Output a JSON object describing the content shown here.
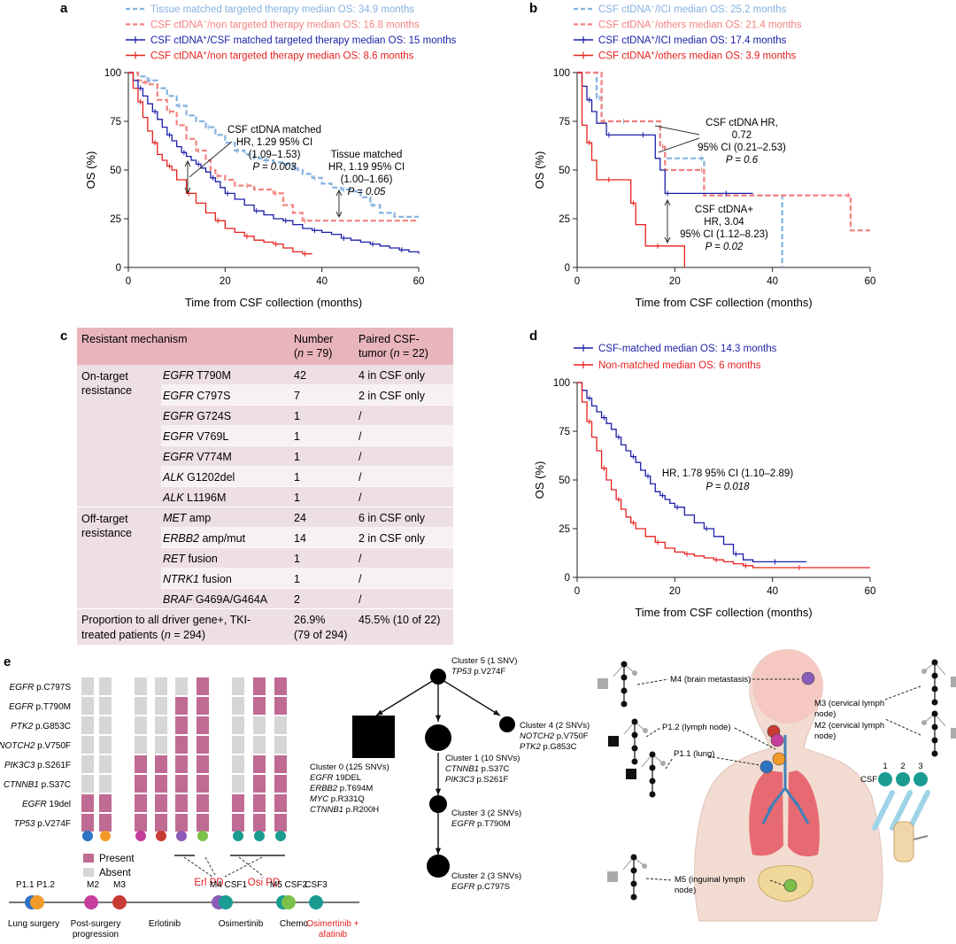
{
  "panels": {
    "a": {
      "letter": "a",
      "legend": [
        {
          "text": "Tissue matched targeted therapy median OS: 34.9 months",
          "color": "#84b1e0",
          "dash": true
        },
        {
          "text_pre": "CSF ctDNA",
          "sup": "−",
          "text_post": "/non targeted therapy median OS: 16.8 months",
          "color": "#f2827e",
          "dash": true
        },
        {
          "text_pre": "CSF ctDNA",
          "sup": "+",
          "text_post": "/CSF matched targeted therapy median OS: 15 months",
          "color": "#1b1fa8",
          "dash": false
        },
        {
          "text_pre": "CSF ctDNA",
          "sup": "+",
          "text_post": "/non targeted therapy median OS: 8.6 months",
          "color": "#e5211f",
          "dash": false
        }
      ],
      "annot1": [
        "CSF ctDNA matched",
        "HR, 1.29 95% CI",
        "(1.09–1.53)",
        "P = 0.003"
      ],
      "annot2": [
        "Tissue matched",
        "HR, 1.19 95% CI",
        "(1.00–1.66)",
        "P = 0.05"
      ]
    },
    "b": {
      "letter": "b",
      "legend": [
        {
          "text_pre": "CSF ctDNA",
          "sup": "−",
          "text_post": "/ICI median OS: 25.2 months",
          "color": "#84b1e0",
          "dash": true
        },
        {
          "text_pre": "CSF ctDNA",
          "sup": "−",
          "text_post": "/others median OS: 21.4 months",
          "color": "#f2827e",
          "dash": true
        },
        {
          "text_pre": "CSF ctDNA",
          "sup": "+",
          "text_post": "/ICI median OS: 17.4 months",
          "color": "#1b1fa8",
          "dash": false
        },
        {
          "text_pre": "CSF ctDNA",
          "sup": "+",
          "text_post": "/others median OS: 3.9 months",
          "color": "#e5211f",
          "dash": false
        }
      ],
      "annot1": [
        "CSF ctDNA HR,",
        "0.72",
        "95% CI (0.21–2.53)",
        "P = 0.6"
      ],
      "annot2": [
        "CSF ctDNA+",
        "HR, 3.04",
        "95% CI (1.12–8.23)",
        "P = 0.02"
      ]
    },
    "c": {
      "letter": "c",
      "headers": [
        "Resistant mechanism",
        "Number",
        "(n = 79)",
        "Paired CSF-",
        "tumor (n = 22)"
      ],
      "groups": [
        {
          "label": [
            "On-target",
            "resistance"
          ],
          "rows": [
            {
              "gene": "EGFR",
              "var": "T790M",
              "num": "42",
              "paired": "4 in CSF only"
            },
            {
              "gene": "EGFR",
              "var": "C797S",
              "num": "7",
              "paired": "2 in CSF only"
            },
            {
              "gene": "EGFR",
              "var": "G724S",
              "num": "1",
              "paired": "/"
            },
            {
              "gene": "EGFR",
              "var": "V769L",
              "num": "1",
              "paired": "/"
            },
            {
              "gene": "EGFR",
              "var": "V774M",
              "num": "1",
              "paired": "/"
            },
            {
              "gene": "ALK",
              "var": "G1202del",
              "num": "1",
              "paired": "/"
            },
            {
              "gene": "ALK",
              "var": "L1196M",
              "num": "1",
              "paired": "/"
            }
          ]
        },
        {
          "label": [
            "Off-target",
            "resistance"
          ],
          "rows": [
            {
              "gene": "MET",
              "var": "amp",
              "num": "24",
              "paired": "6 in CSF only"
            },
            {
              "gene": "ERBB2",
              "var": "amp/mut",
              "num": "14",
              "paired": "2 in CSF only"
            },
            {
              "gene": "RET",
              "var": "fusion",
              "num": "1",
              "paired": "/"
            },
            {
              "gene": "NTRK1",
              "var": "fusion",
              "num": "1",
              "paired": "/"
            },
            {
              "gene": "BRAF",
              "var": "G469A/G464A",
              "num": "2",
              "paired": "/"
            }
          ]
        }
      ],
      "footer": {
        "label": [
          "Proportion to all driver gene+, TKI-",
          "treated patients (n = 294)"
        ],
        "num": [
          "26.9%",
          "(79 of 294)"
        ],
        "paired": "45.5% (10 of 22)"
      }
    },
    "d": {
      "letter": "d",
      "legend": [
        {
          "text": "CSF-matched median OS: 14.3 months",
          "color": "#1b1fa8"
        },
        {
          "text": "Non-matched median OS: 6 months",
          "color": "#e5211f"
        }
      ],
      "annot": [
        "HR, 1.78 95% CI (1.10–2.89)",
        "P = 0.018"
      ]
    },
    "e": {
      "letter": "e",
      "genes": [
        {
          "g": "EGFR",
          "v": "p.C797S"
        },
        {
          "g": "EGFR",
          "v": "p.T790M"
        },
        {
          "g": "PTK2",
          "v": "p.G853C"
        },
        {
          "g": "NOTCH2",
          "v": "p.V750F"
        },
        {
          "g": "PIK3C3",
          "v": "p.S261F"
        },
        {
          "g": "CTNNB1",
          "v": "p.S37C"
        },
        {
          "g": "EGFR",
          "v": "19del"
        },
        {
          "g": "TP53",
          "v": "p.V274F"
        }
      ],
      "legend_present": "Present",
      "legend_absent": "Absent",
      "erl_pd": "Erl PD",
      "osi_pd": "Osi PD",
      "timeline_labels_top": [
        "P1.1 P1.2",
        "M2",
        "M3",
        "M4 CSF1",
        "M5 CSF2",
        "CSF3"
      ],
      "timeline_labels_bottom": [
        "Lung surgery",
        "Post-surgery",
        "progression",
        "Erlotinib",
        "Osimertinib",
        "Chemo",
        "Osimertinib +",
        "afatinib"
      ],
      "clusters": {
        "c5": [
          "Cluster 5 (1 SNV)",
          "TP53 p.V274F"
        ],
        "c0": [
          "Cluster 0 (125 SNVs)",
          "EGFR 19DEL",
          "ERBB2 p.T694M",
          "MYC p.R331Q",
          "CTNNB1 p.R200H"
        ],
        "c1": [
          "Cluster 1 (10 SNVs)",
          "CTNNB1 p.S37C",
          "PIK3C3 p.S261F"
        ],
        "c4": [
          "Cluster 4 (2 SNVs)",
          "NOTCH2 p.V750F",
          "PTK2 p.G853C"
        ],
        "c3": [
          "Cluster 3 (2 SNVs)",
          "EGFR p.T790M"
        ],
        "c2": [
          "Cluster 2 (3 SNVs)",
          "EGFR p.C797S"
        ]
      },
      "sites": {
        "m4": "M4 (brain metastasis)",
        "m3": [
          "M3 (cervical lymph",
          "node)"
        ],
        "m2": [
          "M2 (cervical lymph",
          "node)"
        ],
        "p12": "P1.2 (lymph node)",
        "p11": "P1.1 (lung)",
        "m5": [
          "M5 (inguinal lymph",
          "node)"
        ],
        "csf": "CSF",
        "csf_nums": [
          "1",
          "2",
          "3"
        ]
      }
    }
  },
  "axes": {
    "os_label": "OS (%)",
    "time_label": "Time from CSF collection (months)",
    "y_ticks": [
      "0",
      "25",
      "50",
      "75",
      "100"
    ],
    "x_ticks": [
      "0",
      "20",
      "40",
      "60"
    ]
  },
  "colors": {
    "light_blue": "#84b1e0",
    "salmon": "#f2827e",
    "navy": "#1b1fa8",
    "red": "#e5211f",
    "table_head": "#e8b5bd",
    "table_dark": "#eedfe2",
    "table_light": "#f8f1f2",
    "present": "#c06b93",
    "absent": "#d6d6d6"
  },
  "chart_data": [
    {
      "type": "line",
      "title": "",
      "xlabel": "Time from CSF collection (months)",
      "ylabel": "OS (%)",
      "xlim": [
        0,
        60
      ],
      "ylim": [
        0,
        100
      ],
      "series": [
        {
          "name": "Tissue matched targeted therapy median OS: 34.9 months",
          "x": [
            0,
            2,
            4,
            6,
            8,
            10,
            12,
            14,
            16,
            18,
            20,
            22,
            24,
            26,
            28,
            30,
            32,
            34,
            35,
            36,
            38,
            40,
            42,
            44,
            46,
            48,
            50,
            52,
            55,
            60
          ],
          "y": [
            100,
            98,
            96,
            92,
            88,
            83,
            78,
            75,
            72,
            68,
            64,
            60,
            58,
            56,
            55,
            54,
            53,
            51,
            50,
            48,
            46,
            43,
            41,
            40,
            39,
            36,
            32,
            28,
            26,
            26
          ]
        },
        {
          "name": "CSF ctDNA-/non targeted therapy median OS: 16.8 months",
          "x": [
            0,
            2,
            3,
            4,
            6,
            8,
            10,
            12,
            14,
            16,
            17,
            18,
            20,
            22,
            24,
            26,
            28,
            30,
            32,
            34,
            36,
            60
          ],
          "y": [
            100,
            96,
            95,
            94,
            86,
            80,
            73,
            66,
            60,
            55,
            50,
            47,
            45,
            42,
            42,
            40,
            40,
            38,
            32,
            28,
            24,
            24
          ]
        },
        {
          "name": "CSF ctDNA+/CSF matched targeted therapy median OS: 15 months",
          "x": [
            0,
            1,
            2,
            3,
            4,
            5,
            6,
            7,
            8,
            9,
            10,
            11,
            12,
            13,
            14,
            15,
            16,
            17,
            18,
            19,
            20,
            22,
            24,
            26,
            28,
            30,
            32,
            34,
            36,
            38,
            40,
            42,
            44,
            46,
            48,
            50,
            52,
            54,
            56,
            58,
            60
          ],
          "y": [
            100,
            96,
            92,
            88,
            84,
            80,
            76,
            72,
            68,
            65,
            62,
            59,
            57,
            55,
            53,
            51,
            49,
            46,
            44,
            41,
            38,
            35,
            32,
            29,
            27,
            25,
            24,
            22,
            20,
            19,
            18,
            17,
            15,
            14,
            13,
            12,
            11,
            10,
            9,
            8,
            7
          ]
        },
        {
          "name": "CSF ctDNA+/non targeted therapy median OS: 8.6 months",
          "x": [
            0,
            1,
            2,
            3,
            4,
            5,
            6,
            7,
            8,
            9,
            10,
            12,
            14,
            16,
            18,
            20,
            22,
            24,
            26,
            28,
            30,
            32,
            34,
            36,
            38
          ],
          "y": [
            100,
            92,
            85,
            77,
            70,
            64,
            58,
            55,
            52,
            50,
            45,
            38,
            33,
            28,
            24,
            20,
            18,
            16,
            14,
            13,
            12,
            10,
            8,
            7,
            7
          ]
        }
      ]
    },
    {
      "type": "line",
      "title": "",
      "xlabel": "Time from CSF collection (months)",
      "ylabel": "OS (%)",
      "xlim": [
        0,
        60
      ],
      "ylim": [
        0,
        100
      ],
      "series": [
        {
          "name": "CSF ctDNA-/ICI median OS: 25.2 months",
          "x": [
            0,
            3,
            4,
            5,
            8,
            9,
            11,
            15,
            17,
            18,
            20,
            25,
            26,
            41,
            42
          ],
          "y": [
            100,
            100,
            87,
            75,
            75,
            75,
            75,
            75,
            62,
            56,
            56,
            56,
            37,
            37,
            0
          ]
        },
        {
          "name": "CSF ctDNA-/others median OS: 21.4 months",
          "x": [
            0,
            4,
            5,
            8,
            12,
            17,
            18,
            21,
            25,
            26,
            40,
            55,
            56,
            60
          ],
          "y": [
            100,
            100,
            75,
            75,
            75,
            62,
            50,
            50,
            50,
            37,
            37,
            37,
            19,
            19
          ]
        },
        {
          "name": "CSF ctDNA+/ICI median OS: 17.4 months",
          "x": [
            0,
            1,
            2,
            3,
            4,
            6,
            8,
            12,
            13,
            16,
            17,
            18,
            20,
            25,
            30,
            36
          ],
          "y": [
            100,
            93,
            86,
            80,
            74,
            68,
            68,
            68,
            68,
            56,
            50,
            38,
            38,
            38,
            38,
            38
          ]
        },
        {
          "name": "CSF ctDNA+/others median OS: 3.9 months",
          "x": [
            0,
            1,
            2,
            3,
            4,
            6,
            8,
            10,
            11,
            12,
            14,
            16,
            18,
            20,
            22
          ],
          "y": [
            100,
            73,
            64,
            55,
            45,
            45,
            45,
            45,
            33,
            22,
            11,
            11,
            11,
            11,
            0
          ]
        }
      ]
    },
    {
      "type": "line",
      "title": "",
      "xlabel": "Time from CSF collection (months)",
      "ylabel": "OS (%)",
      "xlim": [
        0,
        60
      ],
      "ylim": [
        0,
        100
      ],
      "series": [
        {
          "name": "CSF-matched median OS: 14.3 months",
          "x": [
            0,
            1,
            2,
            3,
            4,
            5,
            6,
            7,
            8,
            9,
            10,
            11,
            12,
            13,
            14,
            15,
            16,
            17,
            18,
            19,
            20,
            22,
            24,
            26,
            28,
            30,
            32,
            34,
            36,
            40,
            47
          ],
          "y": [
            100,
            96,
            92,
            88,
            85,
            82,
            79,
            76,
            72,
            68,
            65,
            62,
            59,
            55,
            52,
            48,
            44,
            42,
            40,
            38,
            36,
            32,
            28,
            25,
            21,
            17,
            12,
            9,
            8,
            8,
            8
          ]
        },
        {
          "name": "Non-matched median OS: 6 months",
          "x": [
            0,
            1,
            2,
            3,
            4,
            5,
            6,
            7,
            8,
            9,
            10,
            11,
            12,
            14,
            16,
            18,
            20,
            22,
            24,
            26,
            28,
            30,
            32,
            34,
            36,
            40,
            45,
            50,
            55,
            60
          ],
          "y": [
            100,
            90,
            80,
            72,
            65,
            56,
            50,
            45,
            40,
            35,
            31,
            28,
            25,
            21,
            18,
            15,
            13,
            12,
            11,
            10,
            9,
            8,
            7,
            6,
            5,
            5,
            5,
            5,
            5,
            5
          ]
        }
      ]
    }
  ]
}
